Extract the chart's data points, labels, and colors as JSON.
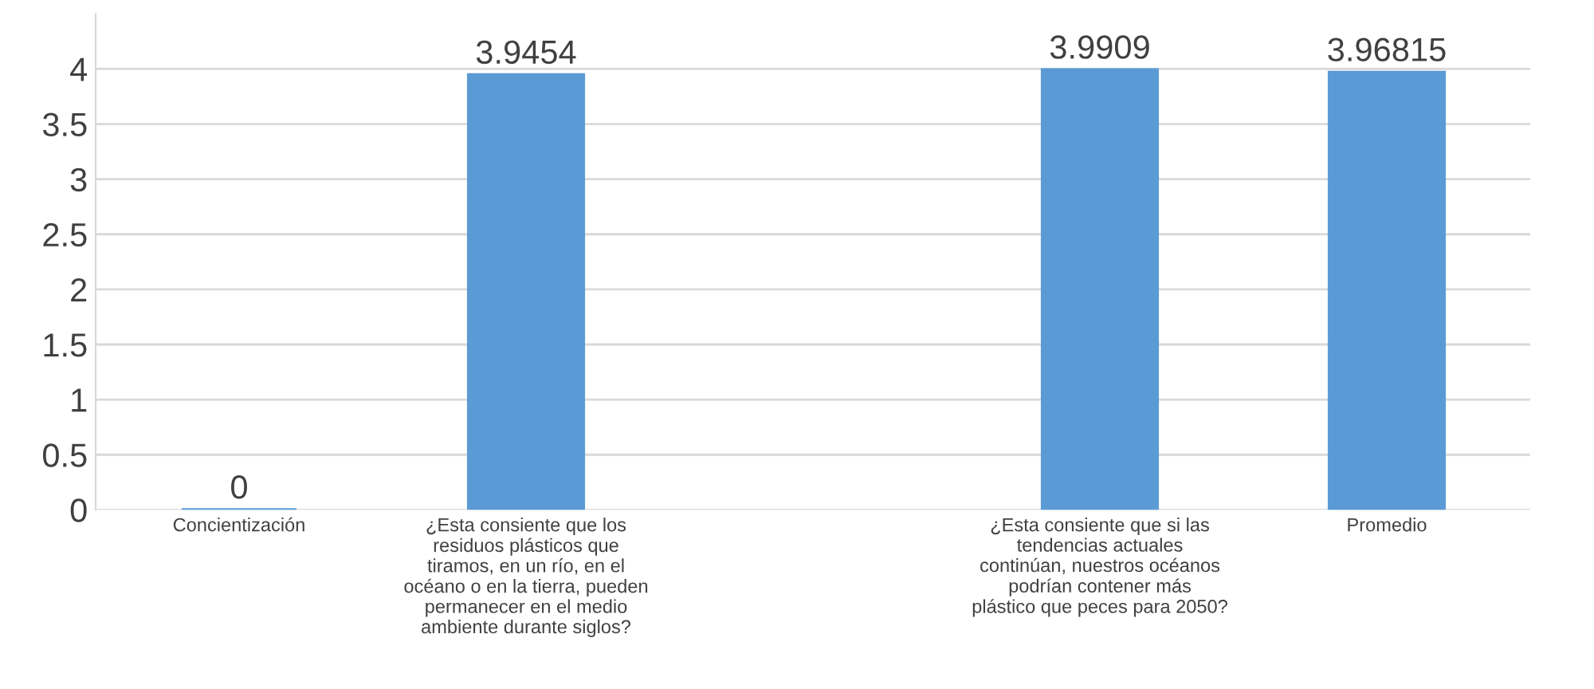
{
  "chart_data": {
    "type": "bar",
    "categories": [
      "Concientización",
      "¿Esta consiente que los\nresiduos plásticos que\ntiramos, en un río, en el\nocéano o en la tierra, pueden\npermanecer en el medio\nambiente durante siglos?",
      null,
      "¿Esta consiente que si las\ntendencias actuales\ncontinúan, nuestros océanos\npodrían contener más\nplástico que peces para 2050?",
      "Promedio"
    ],
    "values": [
      0,
      3.9454,
      null,
      3.9909,
      3.96815
    ],
    "color": "#5b9bd5",
    "ylim": [
      0,
      4.5
    ],
    "yticks": [
      0,
      0.5,
      1,
      1.5,
      2,
      2.5,
      3,
      3.5,
      4
    ],
    "grid": "y",
    "data_labels": true
  }
}
